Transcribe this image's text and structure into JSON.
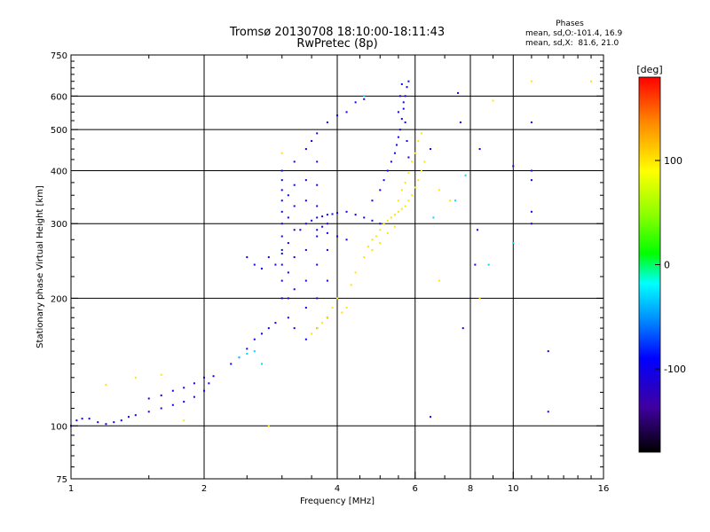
{
  "header": {
    "title_line1": "Tromsø 20130708 18:10:00-18:11:43",
    "title_line2": "RwPretec (8p)"
  },
  "phase_box": {
    "title": "Phases",
    "line_o": "mean, sd,O:-101.4, 16.9",
    "line_x": "mean, sd,X:  81.6, 21.0"
  },
  "chart_data": {
    "type": "scatter",
    "xlabel": "Frequency [MHz]",
    "ylabel": "Stationary phase Virtual Height [km]",
    "xscale": "log",
    "yscale": "log",
    "xlim": [
      1,
      16
    ],
    "ylim": [
      75,
      750
    ],
    "x_ticks": [
      1,
      2,
      4,
      6,
      8,
      10,
      16
    ],
    "x_tick_labels": [
      "1",
      "2",
      "4",
      "6",
      "8",
      "10",
      "16"
    ],
    "x_grid": [
      2,
      4,
      6,
      8,
      10
    ],
    "y_ticks": [
      75,
      100,
      200,
      300,
      400,
      500,
      600,
      750
    ],
    "y_tick_labels": [
      "75",
      "100",
      "200",
      "300",
      "400",
      "500",
      "600",
      "750"
    ],
    "y_grid": [
      100,
      200,
      300,
      400,
      500,
      600
    ],
    "grid": true,
    "colorbar": {
      "label": "[deg]",
      "range": [
        -180,
        180
      ],
      "ticks": [
        100,
        0,
        -100
      ],
      "tick_labels": [
        "100",
        "0",
        "-100"
      ]
    },
    "series": [
      {
        "comment": "O-mode trace (blue/purple)",
        "phase": -100,
        "points": [
          [
            1.0,
            100
          ],
          [
            1.03,
            103
          ],
          [
            1.06,
            104
          ],
          [
            1.1,
            104
          ],
          [
            1.15,
            102
          ],
          [
            1.2,
            101
          ],
          [
            1.25,
            102
          ],
          [
            1.3,
            103
          ],
          [
            1.35,
            105
          ],
          [
            1.4,
            106
          ],
          [
            1.5,
            108
          ],
          [
            1.6,
            110
          ],
          [
            1.7,
            112
          ],
          [
            1.8,
            114
          ],
          [
            1.9,
            117
          ],
          [
            2.0,
            121
          ],
          [
            2.05,
            126
          ],
          [
            2.1,
            131
          ],
          [
            1.5,
            116
          ],
          [
            1.6,
            118
          ],
          [
            1.7,
            121
          ],
          [
            1.8,
            123
          ],
          [
            1.9,
            126
          ],
          [
            2.0,
            130
          ],
          [
            2.3,
            140
          ],
          [
            2.4,
            145
          ],
          [
            2.5,
            152
          ],
          [
            2.6,
            160
          ],
          [
            2.7,
            165
          ],
          [
            2.8,
            170
          ],
          [
            2.9,
            175
          ],
          [
            2.5,
            250
          ],
          [
            2.6,
            240
          ],
          [
            2.7,
            235
          ],
          [
            2.8,
            250
          ],
          [
            2.9,
            240
          ],
          [
            3.0,
            255
          ],
          [
            3.0,
            200
          ],
          [
            3.0,
            220
          ],
          [
            3.0,
            240
          ],
          [
            3.0,
            260
          ],
          [
            3.0,
            280
          ],
          [
            3.0,
            300
          ],
          [
            3.0,
            320
          ],
          [
            3.0,
            340
          ],
          [
            3.0,
            360
          ],
          [
            3.0,
            380
          ],
          [
            3.0,
            400
          ],
          [
            3.1,
            180
          ],
          [
            3.1,
            200
          ],
          [
            3.1,
            230
          ],
          [
            3.1,
            270
          ],
          [
            3.1,
            310
          ],
          [
            3.1,
            350
          ],
          [
            3.2,
            170
          ],
          [
            3.2,
            210
          ],
          [
            3.2,
            250
          ],
          [
            3.2,
            290
          ],
          [
            3.2,
            330
          ],
          [
            3.2,
            370
          ],
          [
            3.2,
            420
          ],
          [
            3.3,
            290
          ],
          [
            3.4,
            300
          ],
          [
            3.5,
            305
          ],
          [
            3.6,
            310
          ],
          [
            3.7,
            312
          ],
          [
            3.8,
            315
          ],
          [
            3.9,
            316
          ],
          [
            4.0,
            318
          ],
          [
            4.2,
            320
          ],
          [
            4.4,
            315
          ],
          [
            4.6,
            310
          ],
          [
            4.8,
            305
          ],
          [
            5.0,
            300
          ],
          [
            3.4,
            160
          ],
          [
            3.4,
            190
          ],
          [
            3.4,
            220
          ],
          [
            3.4,
            260
          ],
          [
            3.4,
            340
          ],
          [
            3.4,
            380
          ],
          [
            3.6,
            170
          ],
          [
            3.6,
            200
          ],
          [
            3.6,
            240
          ],
          [
            3.6,
            280
          ],
          [
            3.6,
            330
          ],
          [
            3.6,
            370
          ],
          [
            3.6,
            420
          ],
          [
            3.8,
            180
          ],
          [
            3.8,
            220
          ],
          [
            3.8,
            260
          ],
          [
            3.8,
            300
          ],
          [
            3.6,
            290
          ],
          [
            3.7,
            295
          ],
          [
            3.8,
            285
          ],
          [
            4.0,
            280
          ],
          [
            4.2,
            275
          ],
          [
            3.4,
            450
          ],
          [
            3.5,
            470
          ],
          [
            3.6,
            490
          ],
          [
            3.8,
            520
          ],
          [
            4.0,
            540
          ],
          [
            4.2,
            550
          ],
          [
            4.4,
            580
          ],
          [
            4.6,
            590
          ],
          [
            4.8,
            340
          ],
          [
            5.0,
            360
          ],
          [
            5.1,
            380
          ],
          [
            5.2,
            400
          ],
          [
            5.3,
            420
          ],
          [
            5.4,
            440
          ],
          [
            5.45,
            460
          ],
          [
            5.5,
            480
          ],
          [
            5.55,
            500
          ],
          [
            5.6,
            530
          ],
          [
            5.65,
            560
          ],
          [
            5.7,
            600
          ],
          [
            5.75,
            630
          ],
          [
            5.8,
            650
          ],
          [
            5.5,
            550
          ],
          [
            5.55,
            600
          ],
          [
            5.6,
            640
          ],
          [
            5.65,
            580
          ],
          [
            5.7,
            520
          ],
          [
            5.75,
            470
          ],
          [
            5.8,
            430
          ],
          [
            7.5,
            610
          ],
          [
            7.6,
            520
          ],
          [
            8.4,
            450
          ],
          [
            10.0,
            410
          ],
          [
            11.0,
            400
          ],
          [
            11.0,
            380
          ],
          [
            11.0,
            320
          ],
          [
            11.0,
            300
          ],
          [
            11.0,
            520
          ],
          [
            6.5,
            450
          ],
          [
            8.3,
            290
          ],
          [
            8.2,
            240
          ],
          [
            7.7,
            170
          ],
          [
            6.5,
            105
          ],
          [
            12.0,
            150
          ],
          [
            12.0,
            108
          ]
        ]
      },
      {
        "comment": "X-mode trace (yellow/green)",
        "phase": 100,
        "points": [
          [
            3.5,
            165
          ],
          [
            3.6,
            170
          ],
          [
            3.7,
            175
          ],
          [
            3.8,
            180
          ],
          [
            3.9,
            190
          ],
          [
            4.0,
            200
          ],
          [
            4.1,
            185
          ],
          [
            4.2,
            190
          ],
          [
            4.3,
            215
          ],
          [
            4.4,
            230
          ],
          [
            4.6,
            250
          ],
          [
            4.7,
            265
          ],
          [
            4.8,
            275
          ],
          [
            4.9,
            280
          ],
          [
            5.0,
            290
          ],
          [
            5.1,
            300
          ],
          [
            5.2,
            305
          ],
          [
            5.3,
            310
          ],
          [
            5.4,
            315
          ],
          [
            5.5,
            320
          ],
          [
            5.6,
            325
          ],
          [
            5.7,
            330
          ],
          [
            5.8,
            340
          ],
          [
            5.9,
            350
          ],
          [
            6.0,
            365
          ],
          [
            6.1,
            380
          ],
          [
            6.2,
            400
          ],
          [
            6.3,
            420
          ],
          [
            4.8,
            260
          ],
          [
            5.0,
            270
          ],
          [
            5.2,
            285
          ],
          [
            5.4,
            295
          ],
          [
            5.5,
            340
          ],
          [
            5.6,
            360
          ],
          [
            5.7,
            375
          ],
          [
            5.8,
            395
          ],
          [
            5.9,
            420
          ],
          [
            6.0,
            440
          ],
          [
            6.1,
            470
          ],
          [
            6.2,
            490
          ],
          [
            1.2,
            125
          ],
          [
            1.4,
            130
          ],
          [
            1.6,
            132
          ],
          [
            1.8,
            103
          ],
          [
            2.8,
            100
          ],
          [
            3.0,
            440
          ],
          [
            9.0,
            585
          ],
          [
            11.0,
            650
          ],
          [
            15.0,
            650
          ],
          [
            6.8,
            360
          ],
          [
            7.2,
            340
          ],
          [
            8.4,
            200
          ],
          [
            6.8,
            220
          ]
        ]
      },
      {
        "comment": "scattered cyan points",
        "phase": -30,
        "points": [
          [
            2.4,
            145
          ],
          [
            2.5,
            148
          ],
          [
            2.6,
            150
          ],
          [
            2.7,
            140
          ],
          [
            4.6,
            600
          ],
          [
            6.6,
            310
          ],
          [
            7.4,
            340
          ],
          [
            7.8,
            390
          ],
          [
            10.0,
            270
          ],
          [
            8.8,
            240
          ]
        ]
      }
    ]
  }
}
